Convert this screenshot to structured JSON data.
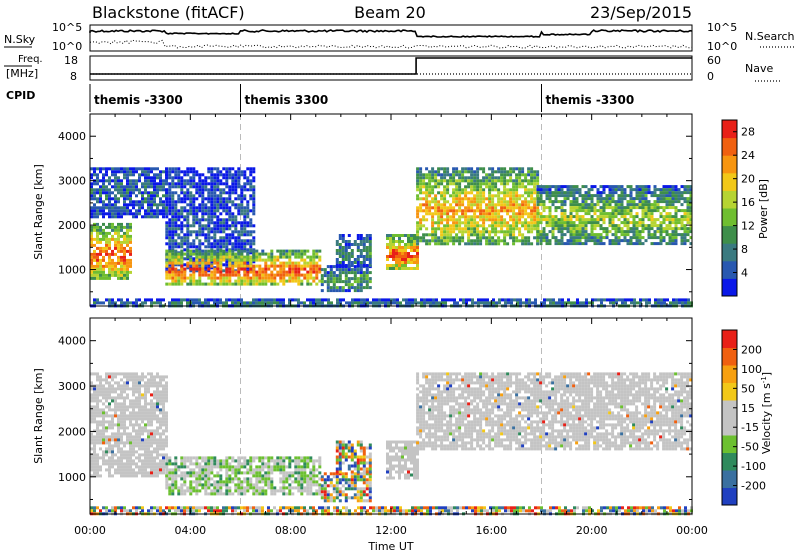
{
  "header": {
    "station": "Blackstone (fitACF)",
    "beam": "Beam 20",
    "date": "23/Sep/2015"
  },
  "labels": {
    "nsky": "N.Sky",
    "nsearch": "N.Search",
    "freq_line1": "Freq.",
    "freq_line2": "[MHz]",
    "nave": "Nave",
    "cpid": "CPID",
    "xlabel": "Time UT"
  },
  "nsky_axis": {
    "left_top": "10^5",
    "left_bottom": "10^0",
    "right_top": "10^5",
    "right_bottom": "10^0"
  },
  "freq_axis": {
    "left_top": "18",
    "left_bottom": "8",
    "right_top": "60",
    "right_bottom": "0"
  },
  "cpid_segments": [
    {
      "label": "themis -3300",
      "start_hour": 0
    },
    {
      "label": "themis 3300",
      "start_hour": 6
    },
    {
      "label": "themis -3300",
      "start_hour": 18
    }
  ],
  "x_ticks": [
    "00:00",
    "04:00",
    "08:00",
    "12:00",
    "16:00",
    "20:00",
    "00:00"
  ],
  "chart_data": [
    {
      "type": "heatmap",
      "title": "",
      "xlabel": "Time UT",
      "ylabel": "Slant Range [km]",
      "xlim_hours": [
        0,
        24
      ],
      "ylim_km": [
        180,
        4500
      ],
      "y_ticks": [
        1000,
        2000,
        3000,
        4000
      ],
      "colorbar": {
        "label": "Power [dB]",
        "ticks": [
          4,
          8,
          12,
          16,
          20,
          24,
          28
        ],
        "range": [
          0,
          30
        ],
        "colors": [
          "#0a18e8",
          "#2858b0",
          "#3a7a80",
          "#3e8e4a",
          "#6fbe30",
          "#b6d432",
          "#f2c818",
          "#f79510",
          "#f06010",
          "#e82018"
        ]
      },
      "regions": [
        {
          "t0": 0.0,
          "t1": 1.6,
          "r0": 800,
          "r1": 2050,
          "level": 0.6
        },
        {
          "t0": 0.0,
          "t1": 3.0,
          "r0": 2200,
          "r1": 3300,
          "level": 0.15
        },
        {
          "t0": 3.0,
          "t1": 6.5,
          "r0": 1000,
          "r1": 3300,
          "level": 0.1
        },
        {
          "t0": 3.0,
          "t1": 9.2,
          "r0": 650,
          "r1": 1450,
          "level": 0.6
        },
        {
          "t0": 9.2,
          "t1": 11.2,
          "r0": 500,
          "r1": 1100,
          "level": 0.25
        },
        {
          "t0": 9.8,
          "t1": 11.2,
          "r0": 1100,
          "r1": 1800,
          "level": 0.2
        },
        {
          "t0": 11.8,
          "t1": 13.0,
          "r0": 1000,
          "r1": 1800,
          "level": 0.6
        },
        {
          "t0": 13.0,
          "t1": 17.8,
          "r0": 1600,
          "r1": 3300,
          "level": 0.5
        },
        {
          "t0": 17.8,
          "t1": 24.0,
          "r0": 1600,
          "r1": 2900,
          "level": 0.35
        },
        {
          "t0": 0.0,
          "t1": 24.0,
          "r0": 180,
          "r1": 350,
          "level": 0.2
        }
      ]
    },
    {
      "type": "heatmap",
      "title": "",
      "xlabel": "Time UT",
      "ylabel": "Slant Range [km]",
      "xlim_hours": [
        0,
        24
      ],
      "ylim_km": [
        180,
        4500
      ],
      "y_ticks": [
        1000,
        2000,
        3000,
        4000
      ],
      "colorbar": {
        "label": "Velocity [m s^-1]",
        "ticks": [
          200,
          100,
          50,
          15,
          -15,
          -50,
          -100,
          -200
        ],
        "range": [
          -250,
          250
        ],
        "colors": [
          "#2040c0",
          "#3a70a0",
          "#2f8a5c",
          "#6cc030",
          "#c4c4c4",
          "#c4c4c4",
          "#f2c818",
          "#f7a010",
          "#f06010",
          "#e82018"
        ]
      },
      "regions": [
        {
          "t0": 0.0,
          "t1": 3.0,
          "r0": 1000,
          "r1": 3300,
          "class": "ground"
        },
        {
          "t0": 3.0,
          "t1": 9.2,
          "r0": 650,
          "r1": 1450,
          "class": "ground+green"
        },
        {
          "t0": 9.2,
          "t1": 11.2,
          "r0": 500,
          "r1": 1100,
          "class": "mixed"
        },
        {
          "t0": 9.8,
          "t1": 11.2,
          "r0": 1100,
          "r1": 1800,
          "class": "mixed"
        },
        {
          "t0": 11.8,
          "t1": 13.0,
          "r0": 1000,
          "r1": 1800,
          "class": "ground"
        },
        {
          "t0": 13.0,
          "t1": 24.0,
          "r0": 1600,
          "r1": 3300,
          "class": "ground"
        },
        {
          "t0": 0.0,
          "t1": 24.0,
          "r0": 180,
          "r1": 350,
          "class": "mixed"
        }
      ]
    }
  ]
}
